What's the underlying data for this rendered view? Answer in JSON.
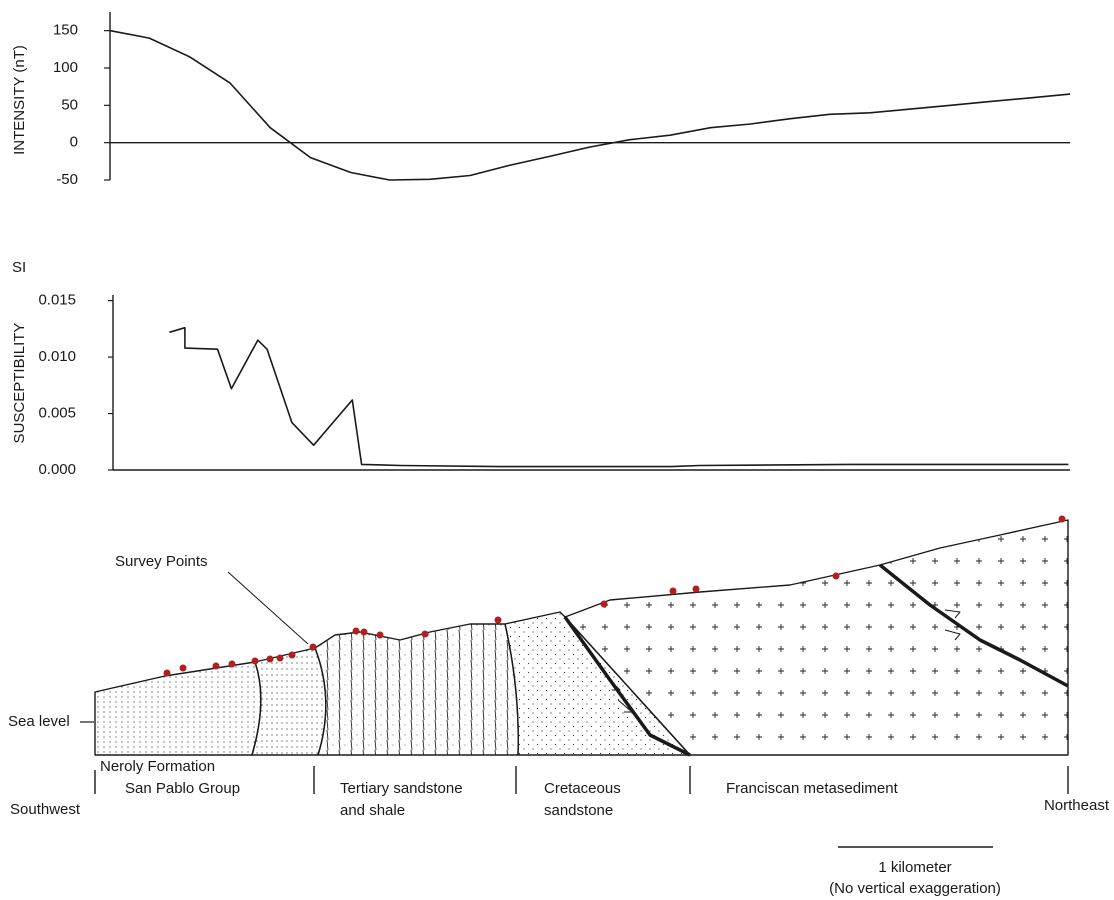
{
  "chart_data": [
    {
      "type": "line",
      "y_label": "INTENSITY  (nT)",
      "color": "#1a1a1a",
      "x": [
        0.1,
        0.35,
        0.61,
        0.87,
        1.13,
        1.39,
        1.65,
        1.9,
        2.16,
        2.42,
        2.68,
        2.94,
        3.19,
        3.45,
        3.71,
        3.97,
        4.23,
        4.48,
        4.74,
        5.0,
        5.26,
        5.52,
        5.77,
        6.03,
        6.29
      ],
      "values": [
        150,
        140,
        115,
        80,
        20,
        -20,
        -40,
        -50,
        -49,
        -44,
        -30,
        -18,
        -6,
        4,
        10,
        20,
        25,
        32,
        38,
        40,
        45,
        50,
        55,
        60,
        65
      ],
      "xlim": [
        0,
        6.29
      ],
      "ylim": [
        -50,
        175
      ],
      "yticks": [
        -50,
        0,
        50,
        100,
        150
      ],
      "zero_line": true
    },
    {
      "type": "line",
      "y_label": "SUSCEPTIBILITY",
      "unit_label": "SI",
      "color": "#1a1a1a",
      "x": [
        0.48,
        0.58,
        0.58,
        0.79,
        0.88,
        1.05,
        1.11,
        1.27,
        1.41,
        1.66,
        1.72,
        1.97,
        2.61,
        3.72,
        3.9,
        4.87,
        6.28
      ],
      "values": [
        0.0122,
        0.0126,
        0.0108,
        0.0107,
        0.0072,
        0.0115,
        0.0107,
        0.0042,
        0.0022,
        0.0062,
        0.0005,
        0.0004,
        0.0003,
        0.0003,
        0.0004,
        0.0005,
        0.0005
      ],
      "xlim": [
        0,
        6.29
      ],
      "ylim": [
        0,
        0.0155
      ],
      "yticks": [
        {
          "value": 0,
          "label": "0.000"
        },
        0.005,
        {
          "value": 0.01,
          "label": "0.010"
        },
        0.015
      ],
      "zero_line": false
    }
  ],
  "cross_section": {
    "survey_label": "Survey Points",
    "sea_level_label": "Sea level",
    "unit_labels": [
      "Neroly Formation",
      "San Pablo Group",
      "Tertiary sandstone",
      "and shale",
      "Cretaceous",
      "sandstone",
      "Franciscan metasediment"
    ],
    "southwest": "Southwest",
    "northeast": "Northeast",
    "scale_label": "1 kilometer",
    "scale_note": "(No vertical exaggeration)"
  }
}
